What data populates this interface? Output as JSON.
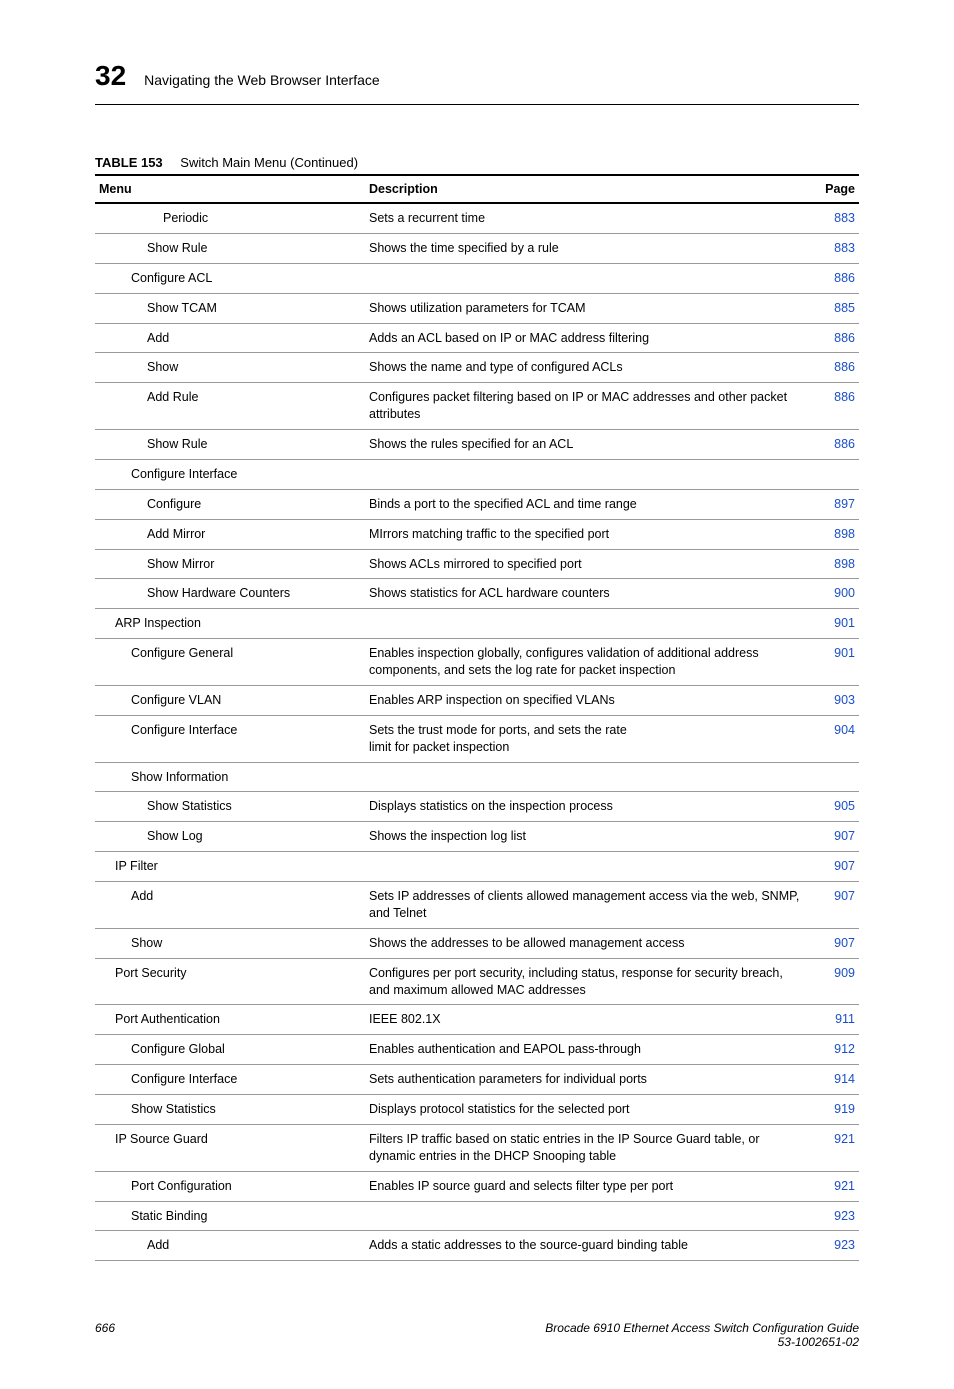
{
  "chapter_number": "32",
  "section_title": "Navigating the Web Browser Interface",
  "table_label": "TABLE 153",
  "table_caption": "Switch Main Menu (Continued)",
  "columns": {
    "menu": "Menu",
    "description": "Description",
    "page": "Page"
  },
  "link_color": "#1a4fc9",
  "rows": [
    {
      "menu": "Periodic",
      "indent": 4,
      "desc": "Sets a recurrent time",
      "page": "883"
    },
    {
      "menu": "Show Rule",
      "indent": 3,
      "desc": "Shows the time specified by a rule",
      "page": "883"
    },
    {
      "menu": "Configure ACL",
      "indent": 2,
      "desc": "",
      "page": "886"
    },
    {
      "menu": "Show TCAM",
      "indent": 3,
      "desc": "Shows utilization parameters for TCAM",
      "page": "885"
    },
    {
      "menu": "Add",
      "indent": 3,
      "desc": "Adds an ACL based on IP or MAC address filtering",
      "page": "886"
    },
    {
      "menu": "Show",
      "indent": 3,
      "desc": "Shows the name and type of configured ACLs",
      "page": "886"
    },
    {
      "menu": "Add Rule",
      "indent": 3,
      "desc": "Configures packet filtering based on IP or MAC addresses and other packet attributes",
      "page": "886"
    },
    {
      "menu": "Show Rule",
      "indent": 3,
      "desc": "Shows the rules specified for an ACL",
      "page": "886"
    },
    {
      "menu": "Configure Interface",
      "indent": 2,
      "desc": "",
      "page": ""
    },
    {
      "menu": "Configure",
      "indent": 3,
      "desc": "Binds a port to the specified ACL and time range",
      "page": "897"
    },
    {
      "menu": "Add Mirror",
      "indent": 3,
      "desc": "MIrrors matching traffic to the specified port",
      "page": "898"
    },
    {
      "menu": "Show Mirror",
      "indent": 3,
      "desc": "Shows ACLs mirrored to specified port",
      "page": "898"
    },
    {
      "menu": "Show Hardware Counters",
      "indent": 3,
      "desc": "Shows statistics for ACL hardware counters",
      "page": "900"
    },
    {
      "menu": "ARP Inspection",
      "indent": 1,
      "desc": "",
      "page": "901"
    },
    {
      "menu": "Configure General",
      "indent": 2,
      "desc": "Enables inspection globally, configures validation of additional address components, and sets the log rate for packet inspection",
      "page": "901"
    },
    {
      "menu": "Configure VLAN",
      "indent": 2,
      "desc": "Enables ARP inspection on specified VLANs",
      "page": "903"
    },
    {
      "menu": "Configure Interface",
      "indent": 2,
      "desc": "Sets the trust mode for ports, and sets the rate\nlimit for packet inspection",
      "page": "904"
    },
    {
      "menu": "Show Information",
      "indent": 2,
      "desc": "",
      "page": ""
    },
    {
      "menu": "Show Statistics",
      "indent": 3,
      "desc": "Displays statistics on the inspection process",
      "page": "905"
    },
    {
      "menu": "Show Log",
      "indent": 3,
      "desc": "Shows the inspection log list",
      "page": "907"
    },
    {
      "menu": "IP Filter",
      "indent": 1,
      "desc": "",
      "page": "907"
    },
    {
      "menu": "Add",
      "indent": 2,
      "desc": "Sets IP addresses of clients allowed management access via the web, SNMP, and Telnet",
      "page": "907"
    },
    {
      "menu": "Show",
      "indent": 2,
      "desc": "Shows the addresses to be allowed management access",
      "page": "907"
    },
    {
      "menu": "Port Security",
      "indent": 1,
      "desc": "Configures per port security, including status, response for security breach, and maximum allowed MAC addresses",
      "page": "909"
    },
    {
      "menu": "Port Authentication",
      "indent": 1,
      "desc": "IEEE 802.1X",
      "page": "911"
    },
    {
      "menu": "Configure Global",
      "indent": 2,
      "desc": "Enables authentication and EAPOL pass-through",
      "page": "912"
    },
    {
      "menu": "Configure Interface",
      "indent": 2,
      "desc": "Sets authentication parameters for individual ports",
      "page": "914"
    },
    {
      "menu": "Show Statistics",
      "indent": 2,
      "desc": "Displays protocol statistics for the selected port",
      "page": "919"
    },
    {
      "menu": "IP Source Guard",
      "indent": 1,
      "desc": "Filters IP traffic based on static entries in the IP Source Guard table, or dynamic entries in the DHCP Snooping table",
      "page": "921"
    },
    {
      "menu": "Port Configuration",
      "indent": 2,
      "desc": "Enables IP source guard and selects filter type per port",
      "page": "921"
    },
    {
      "menu": "Static Binding",
      "indent": 2,
      "desc": "",
      "page": "923"
    },
    {
      "menu": "Add",
      "indent": 3,
      "desc": "Adds a static addresses to the source-guard binding table",
      "page": "923"
    }
  ],
  "footer": {
    "page_number": "666",
    "guide_title": "Brocade 6910 Ethernet Access Switch Configuration Guide",
    "doc_number": "53-1002651-02"
  }
}
